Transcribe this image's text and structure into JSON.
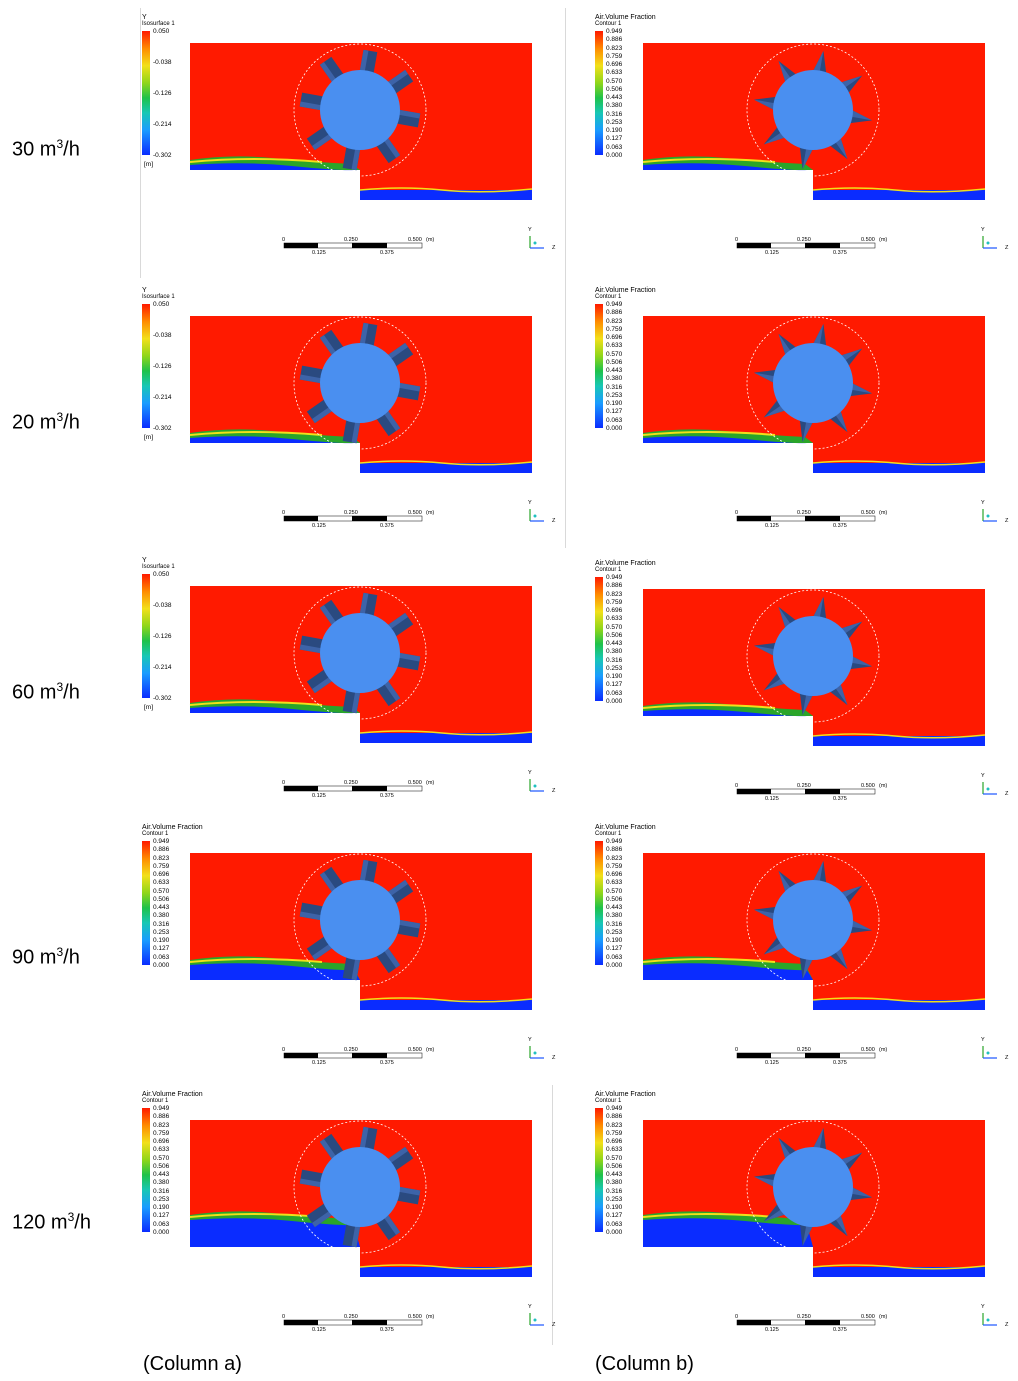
{
  "rows": [
    {
      "flow_label": "30 m",
      "unit_exp": "3",
      "unit_tail": "/h"
    },
    {
      "flow_label": "20 m",
      "unit_exp": "3",
      "unit_tail": "/h"
    },
    {
      "flow_label": "60 m",
      "unit_exp": "3",
      "unit_tail": "/h"
    },
    {
      "flow_label": "90 m",
      "unit_exp": "3",
      "unit_tail": "/h"
    },
    {
      "flow_label": "120 m",
      "unit_exp": "3",
      "unit_tail": "/h"
    }
  ],
  "columns": {
    "a": "(Column a)",
    "b": "(Column b)"
  },
  "legend_isosurface": {
    "title": "Y",
    "subtitle": "Isosurface 1",
    "ticks": [
      "0.050",
      "-0.038",
      "-0.126",
      "-0.214",
      "-0.302"
    ],
    "unit": "[m]"
  },
  "legend_air": {
    "title": "Air.Volume Fraction",
    "subtitle": "Contour 1",
    "ticks": [
      "0.949",
      "0.886",
      "0.823",
      "0.759",
      "0.696",
      "0.633",
      "0.570",
      "0.506",
      "0.443",
      "0.380",
      "0.316",
      "0.253",
      "0.190",
      "0.127",
      "0.063",
      "0.000"
    ]
  },
  "scale_bar": {
    "top_labels": [
      "0",
      "0.250",
      "0.500",
      "(m)"
    ],
    "bottom_labels": [
      "0.125",
      "0.375"
    ]
  },
  "axis_triad": {
    "y": "Y",
    "z": "Z"
  },
  "panel_legends": {
    "a": [
      "iso",
      "iso",
      "iso",
      "air",
      "air"
    ],
    "b": [
      "air",
      "air",
      "air",
      "air",
      "air"
    ]
  },
  "blade_style": {
    "a": "paddle",
    "b": "pointed"
  },
  "colors": {
    "air": "#ff1a00",
    "water": "#0a2cff",
    "wheel": "#4a8ff0",
    "blade": "#2a4a80",
    "mix_green": "#2aa52a",
    "mix_yellow": "#f2e01a"
  }
}
